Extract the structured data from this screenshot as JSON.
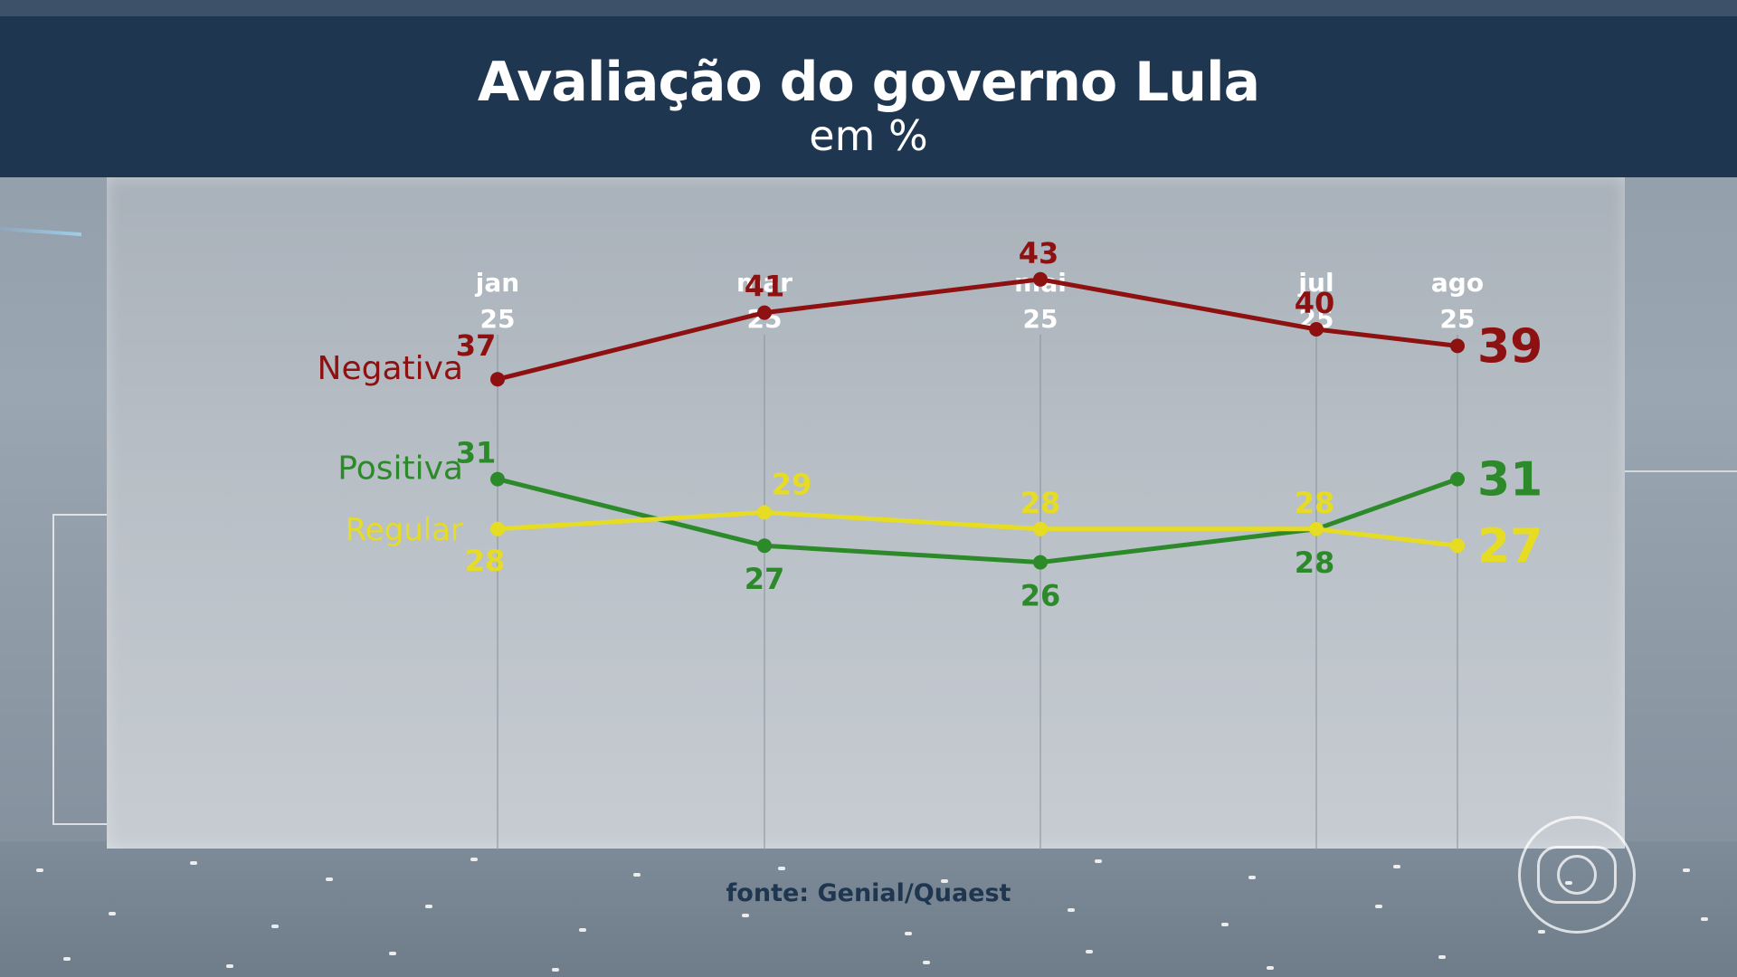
{
  "header": {
    "title": "Avaliação do governo Lula",
    "subtitle": "em %"
  },
  "source": "fonte: Genial/Quaest",
  "colors": {
    "header_bg": "#1e3650",
    "negativa": "#8e1111",
    "positiva": "#2d8a2a",
    "regular": "#e6dc23"
  },
  "chart_data": {
    "type": "line",
    "title": "Avaliação do governo Lula",
    "subtitle": "em %",
    "categories": [
      {
        "month": "jan",
        "year": "25"
      },
      {
        "month": "mar",
        "year": "25"
      },
      {
        "month": "mai",
        "year": "25"
      },
      {
        "month": "jul",
        "year": "25"
      },
      {
        "month": "ago",
        "year": "25"
      }
    ],
    "series": [
      {
        "name": "Negativa",
        "color": "#8e1111",
        "values": [
          37,
          41,
          43,
          40,
          39
        ]
      },
      {
        "name": "Positiva",
        "color": "#2d8a2a",
        "values": [
          31,
          27,
          26,
          28,
          31
        ]
      },
      {
        "name": "Regular",
        "color": "#e6dc23",
        "values": [
          28,
          29,
          28,
          28,
          27
        ]
      }
    ],
    "grid": "vertical lines at each category",
    "legend": "series names left of first point",
    "source": "fonte: Genial/Quaest"
  }
}
